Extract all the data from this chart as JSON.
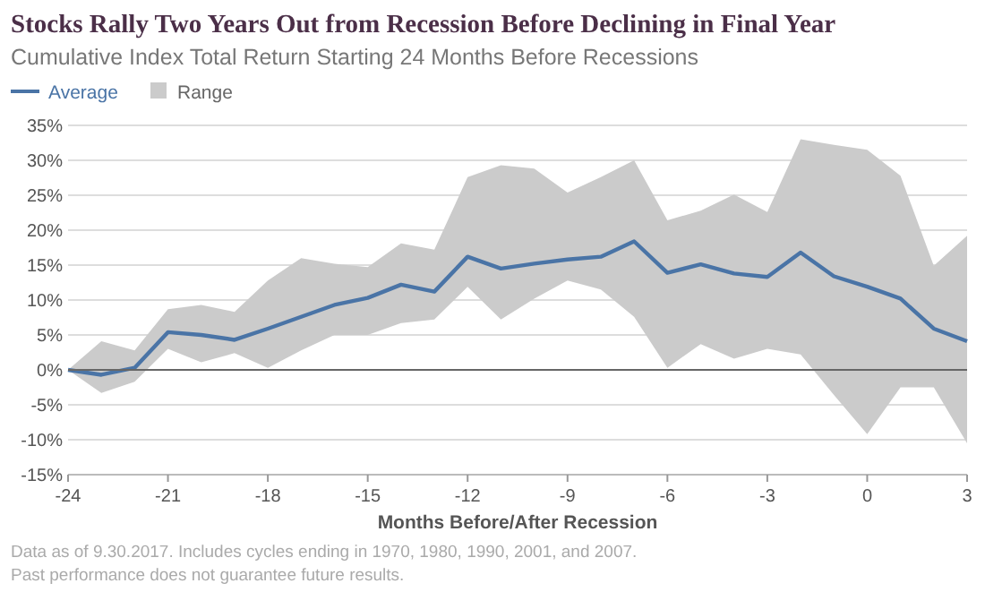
{
  "chart_data": {
    "type": "line",
    "title": "Stocks Rally Two Years Out from Recession Before Declining in Final Year",
    "subtitle": "Cumulative Index Total Return Starting 24 Months Before Recessions",
    "xlabel": "Months Before/After Recession",
    "annotations": [
      "Data as of 9.30.2017. Includes cycles ending in 1970, 1980, 1990, 2001, and 2007.",
      "Past performance does not guarantee future results."
    ],
    "x": [
      -24,
      -23,
      -22,
      -21,
      -20,
      -19,
      -18,
      -17,
      -16,
      -15,
      -14,
      -13,
      -12,
      -11,
      -10,
      -9,
      -8,
      -7,
      -6,
      -5,
      -4,
      -3,
      -2,
      -1,
      0,
      1,
      2,
      3
    ],
    "series": [
      {
        "name": "Average",
        "type": "line",
        "color": "#4a74a6",
        "values": [
          0,
          -0.7,
          0.3,
          5.4,
          5,
          4.3,
          5.9,
          7.6,
          9.3,
          10.3,
          12.2,
          11.2,
          16.2,
          14.5,
          15.2,
          15.8,
          16.2,
          18.4,
          13.9,
          15.1,
          13.8,
          13.3,
          16.8,
          13.4,
          11.9,
          10.2,
          5.9,
          4.1
        ],
        "lower": [
          0,
          -3.3,
          -1.7,
          3,
          1.1,
          2.4,
          0.3,
          2.8,
          5,
          5,
          6.7,
          7.2,
          11.9,
          7.2,
          10.2,
          12.8,
          11.5,
          7.6,
          0.3,
          3.7,
          1.6,
          3,
          2.2,
          -3.6,
          -9.2,
          -2.5,
          -2.5,
          -10.5
        ],
        "upper": [
          0,
          4.1,
          2.8,
          8.7,
          9.3,
          8.3,
          12.8,
          16,
          15.2,
          14.7,
          18.1,
          17.2,
          27.6,
          29.3,
          28.8,
          25.4,
          27.6,
          30,
          21.4,
          22.8,
          25.1,
          22.6,
          33,
          32.2,
          31.5,
          27.8,
          14.9,
          19.2
        ]
      },
      {
        "name": "Range",
        "type": "area",
        "color": "#cbcbcb",
        "values": [
          null,
          null,
          null,
          null,
          null,
          null,
          null,
          null,
          null,
          null,
          null,
          null,
          null,
          null,
          null,
          null,
          null,
          null,
          null,
          null,
          null,
          null,
          null,
          null,
          null,
          null,
          null,
          null
        ]
      }
    ],
    "xlim": [
      -24,
      3
    ],
    "xticks": [
      -24,
      -21,
      -18,
      -15,
      -12,
      -9,
      -6,
      -3,
      0,
      3
    ],
    "ylim": [
      -15,
      35
    ],
    "yticks": [
      {
        "value": -15,
        "label": "-15%"
      },
      {
        "value": -10,
        "label": "-10%"
      },
      {
        "value": -5,
        "label": "-5%"
      },
      {
        "value": 0,
        "label": "0%"
      },
      {
        "value": 5,
        "label": "5%"
      },
      {
        "value": 10,
        "label": "10%"
      },
      {
        "value": 15,
        "label": "15%"
      },
      {
        "value": 20,
        "label": "20%"
      },
      {
        "value": 25,
        "label": "25%"
      },
      {
        "value": 30,
        "label": "30%"
      },
      {
        "value": 35,
        "label": "35%"
      }
    ],
    "ref_lines": [
      {
        "axis": "y",
        "value": 0,
        "color": "#666666"
      }
    ],
    "grid": "y",
    "legend": "top left",
    "marker": "none",
    "line_style": "solid"
  }
}
